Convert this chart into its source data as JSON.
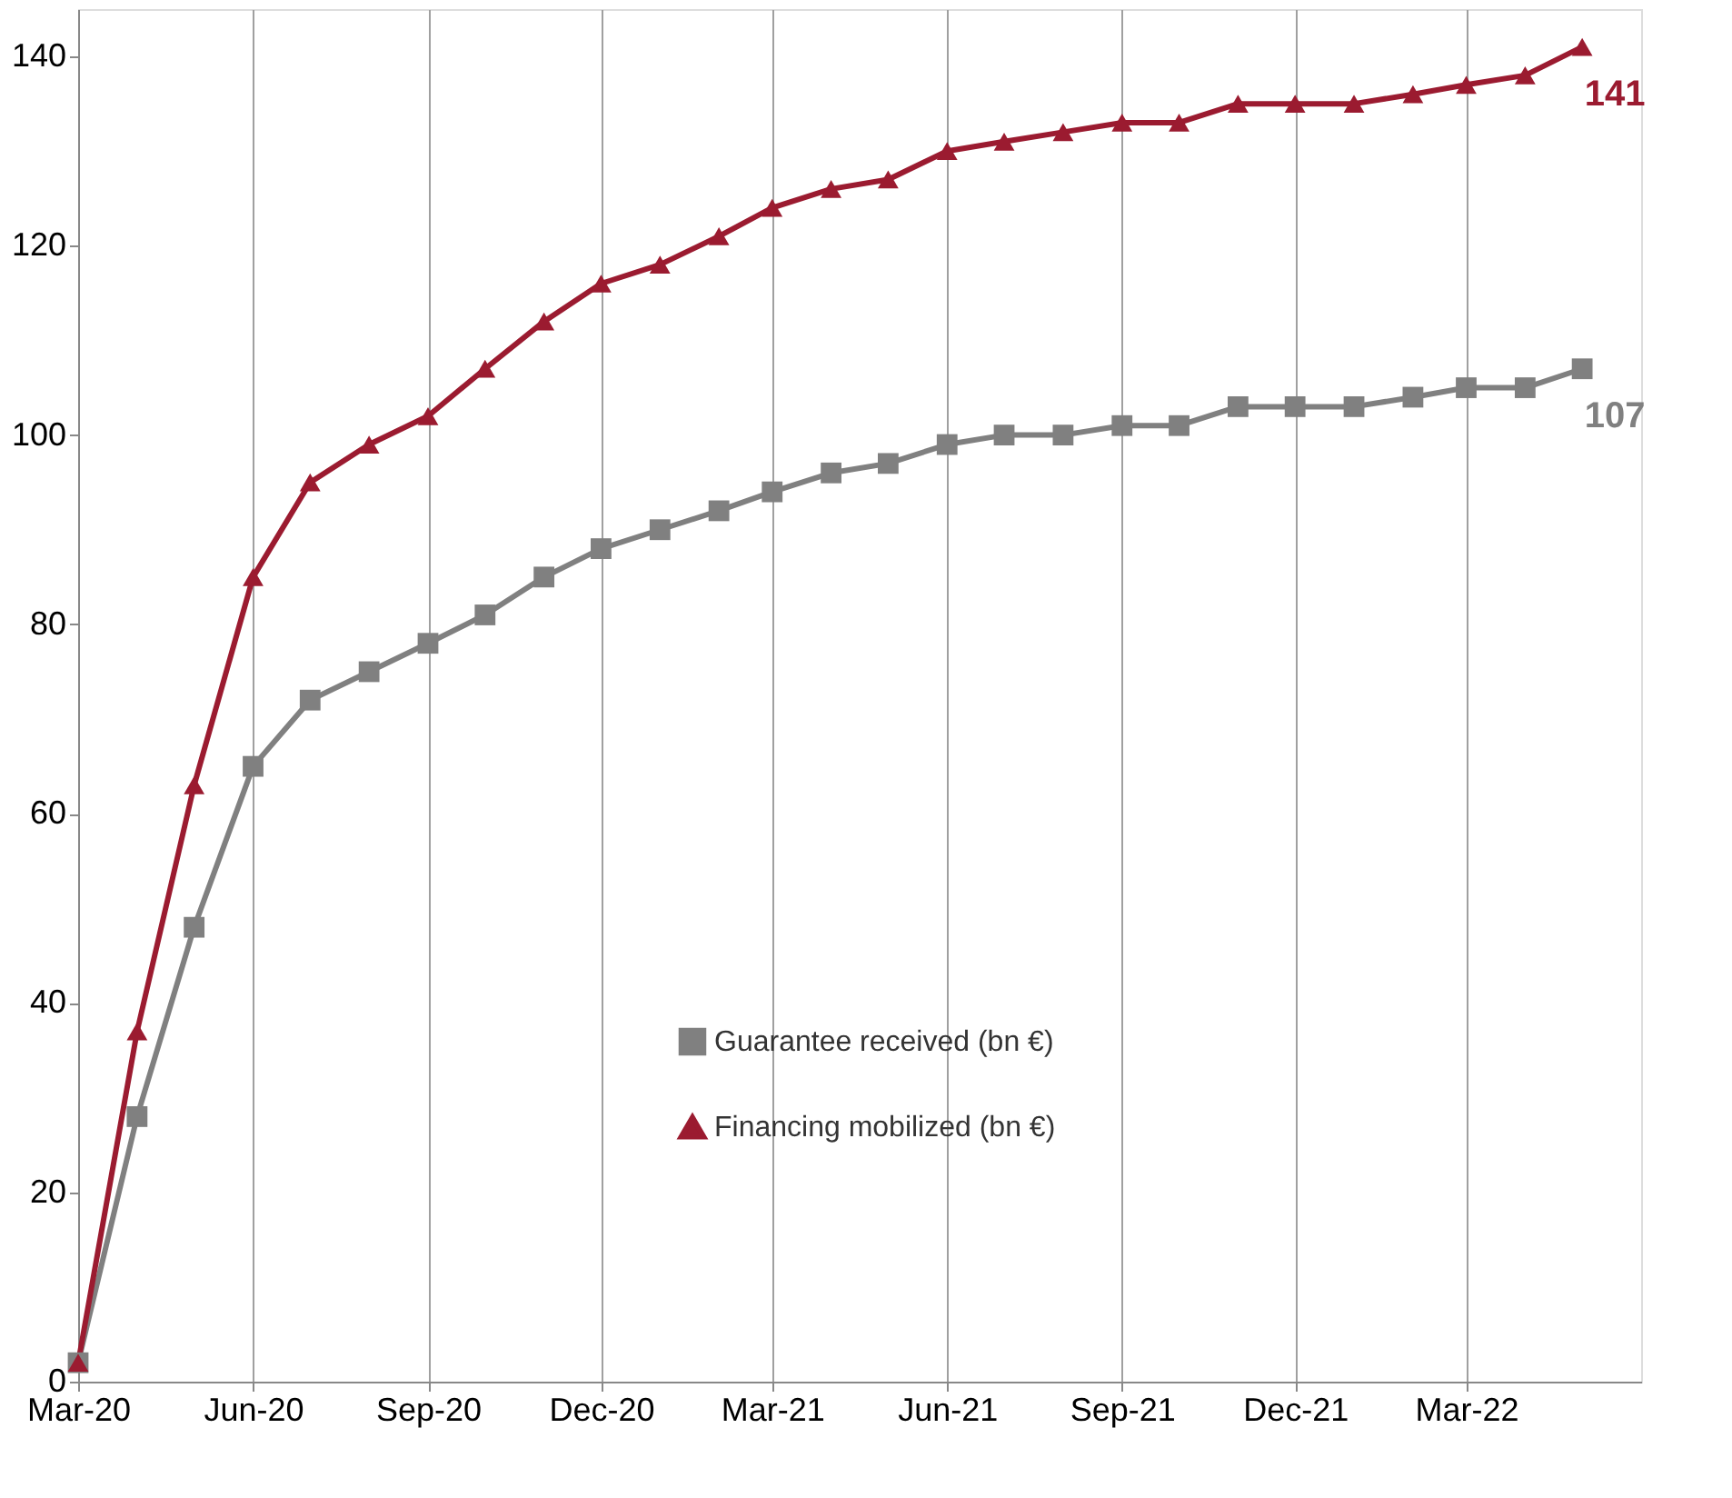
{
  "chart_data": {
    "type": "line",
    "x": [
      "2020-03",
      "2020-04",
      "2020-05",
      "2020-06",
      "2020-07",
      "2020-08",
      "2020-09",
      "2020-10",
      "2020-11",
      "2020-12",
      "2021-01",
      "2021-02",
      "2021-03",
      "2021-04",
      "2021-05",
      "2021-06",
      "2021-07",
      "2021-08",
      "2021-09",
      "2021-10",
      "2021-11",
      "2021-12",
      "2022-01",
      "2022-02",
      "2022-03",
      "2022-04",
      "2022-05"
    ],
    "series": [
      {
        "name": "Guarantee received (bn €)",
        "color": "#808080",
        "marker": "square",
        "values": [
          2,
          28,
          48,
          65,
          72,
          75,
          78,
          81,
          85,
          88,
          90,
          92,
          94,
          96,
          97,
          99,
          100,
          100,
          101,
          101,
          103,
          103,
          103,
          104,
          105,
          105,
          107
        ],
        "value_labels": [
          null,
          null,
          null,
          null,
          null,
          null,
          null,
          null,
          null,
          null,
          null,
          null,
          null,
          null,
          null,
          null,
          null,
          null,
          null,
          null,
          null,
          null,
          null,
          null,
          null,
          null,
          "107"
        ]
      },
      {
        "name": "Financing mobilized  (bn €)",
        "color": "#9b1b30",
        "marker": "triangle",
        "values": [
          2,
          37,
          63,
          85,
          95,
          99,
          102,
          107,
          112,
          116,
          118,
          121,
          124,
          126,
          127,
          130,
          131,
          132,
          133,
          133,
          135,
          135,
          135,
          136,
          137,
          138,
          141
        ],
        "value_labels": [
          null,
          null,
          null,
          null,
          null,
          null,
          null,
          null,
          null,
          null,
          null,
          null,
          null,
          null,
          null,
          null,
          null,
          null,
          null,
          null,
          null,
          null,
          null,
          null,
          null,
          null,
          "141"
        ]
      }
    ],
    "xlim": [
      "2020-03",
      "2022-06"
    ],
    "xticks": [
      {
        "value": "2020-03",
        "label": "Mar-20"
      },
      {
        "value": "2020-06",
        "label": "Jun-20"
      },
      {
        "value": "2020-09",
        "label": "Sep-20"
      },
      {
        "value": "2020-12",
        "label": "Dec-20"
      },
      {
        "value": "2021-03",
        "label": "Mar-21"
      },
      {
        "value": "2021-06",
        "label": "Jun-21"
      },
      {
        "value": "2021-09",
        "label": "Sep-21"
      },
      {
        "value": "2021-12",
        "label": "Dec-21"
      },
      {
        "value": "2022-03",
        "label": "Mar-22"
      }
    ],
    "ylim": [
      0,
      145
    ],
    "yticks": [
      0,
      20,
      40,
      60,
      80,
      100,
      120,
      140
    ],
    "grid": "x",
    "legend": "bottom",
    "line_style": "solid"
  }
}
